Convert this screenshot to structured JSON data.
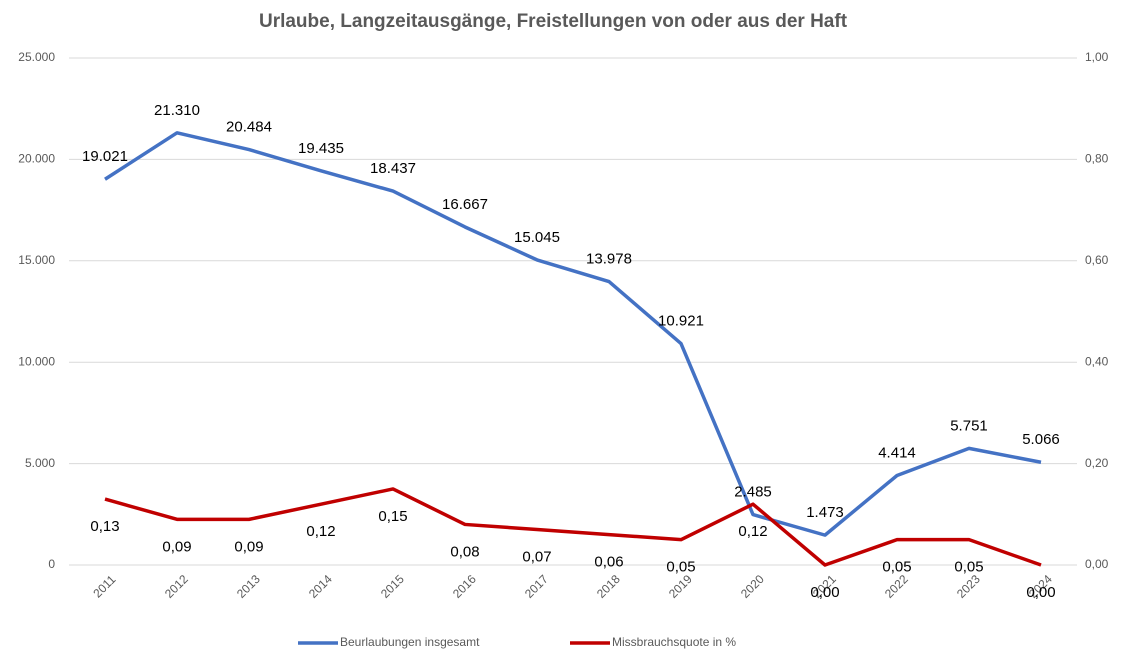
{
  "chart_data": {
    "type": "line",
    "title": "Urlaube, Langzeitausgänge, Freistellungen von oder aus der Haft",
    "categories": [
      "2011",
      "2012",
      "2013",
      "2014",
      "2015",
      "2016",
      "2017",
      "2018",
      "2019",
      "2020",
      "2021",
      "2022",
      "2023",
      "2024"
    ],
    "series": [
      {
        "name": "Beurlaubungen insgesamt",
        "color": "#4472c4",
        "values": [
          19021,
          21310,
          20484,
          19435,
          18437,
          16667,
          15045,
          13978,
          10921,
          2485,
          1473,
          4414,
          5751,
          5066
        ],
        "value_labels": [
          "19.021",
          "21.310",
          "20.484",
          "19.435",
          "18.437",
          "16.667",
          "15.045",
          "13.978",
          "10.921",
          "2.485",
          "1.473",
          "4.414",
          "5.751",
          "5.066"
        ]
      },
      {
        "name": "Missbrauchsquote in %",
        "color": "#c00000",
        "axis": "y2",
        "values": [
          0.13,
          0.09,
          0.09,
          0.12,
          0.15,
          0.08,
          0.07,
          0.06,
          0.05,
          0.12,
          0.0,
          0.05,
          0.05,
          0.0
        ],
        "value_labels": [
          "0,13",
          "0,09",
          "0,09",
          "0,12",
          "0,15",
          "0,08",
          "0,07",
          "0,06",
          "0,05",
          "0,12",
          "0,00",
          "0,05",
          "0,05",
          "0,00"
        ]
      }
    ],
    "ylim": [
      0,
      25000
    ],
    "yticks": [
      0,
      {
        "value": 5000,
        "label": "5.000"
      },
      {
        "value": 10000,
        "label": "10.000"
      },
      {
        "value": 15000,
        "label": "15.000"
      },
      {
        "value": 20000,
        "label": "20.000"
      },
      {
        "value": 25000,
        "label": "25.000"
      }
    ],
    "y2lim": [
      0,
      1
    ],
    "y2ticks": [
      {
        "value": 0,
        "label": "0,00"
      },
      {
        "value": 0.2,
        "label": "0,20"
      },
      {
        "value": 0.4,
        "label": "0,40"
      },
      {
        "value": 0.6,
        "label": "0,60"
      },
      {
        "value": 0.8,
        "label": "0,80"
      },
      {
        "value": 1,
        "label": "1,00"
      }
    ],
    "grid": true,
    "legend": "bottom"
  }
}
